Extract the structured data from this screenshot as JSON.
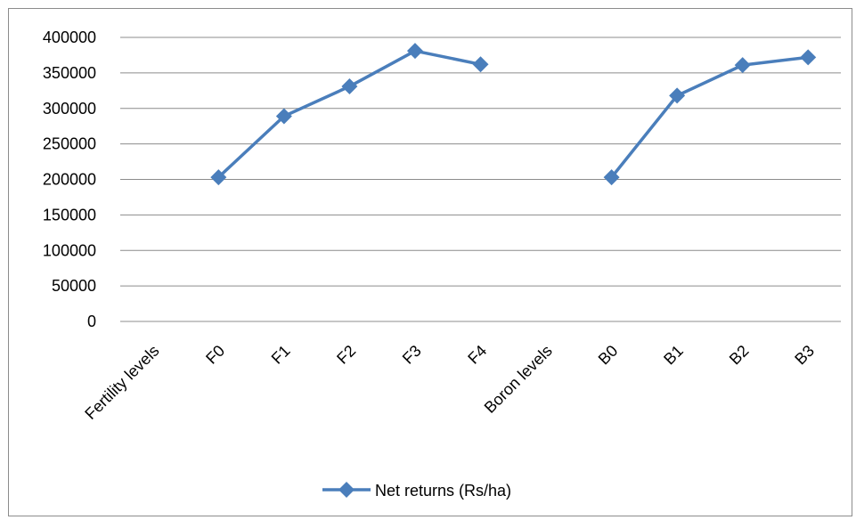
{
  "chart_data": {
    "type": "line",
    "title": "",
    "xlabel": "",
    "ylabel": "",
    "categories": [
      "Fertility levels",
      "F0",
      "F1",
      "F2",
      "F3",
      "F4",
      "Boron levels",
      "B0",
      "B1",
      "B2",
      "B3"
    ],
    "series": [
      {
        "name": "Net returns (Rs/ha)",
        "color": "#4a7ebb",
        "values": [
          null,
          203000,
          289000,
          331000,
          381000,
          362000,
          null,
          203000,
          318000,
          361000,
          372000
        ]
      }
    ],
    "ylim": [
      0,
      400000
    ],
    "yticks": [
      "0",
      "50000",
      "100000",
      "150000",
      "200000",
      "250000",
      "300000",
      "350000",
      "400000"
    ],
    "grid": true,
    "legend": "bottom",
    "marker": "diamond"
  }
}
